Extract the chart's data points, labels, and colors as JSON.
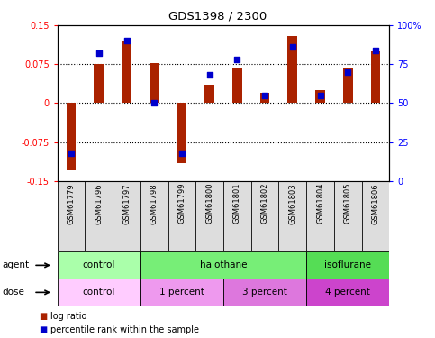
{
  "title": "GDS1398 / 2300",
  "samples": [
    "GSM61779",
    "GSM61796",
    "GSM61797",
    "GSM61798",
    "GSM61799",
    "GSM61800",
    "GSM61801",
    "GSM61802",
    "GSM61803",
    "GSM61804",
    "GSM61805",
    "GSM61806"
  ],
  "log_ratio": [
    -0.13,
    0.075,
    0.12,
    0.078,
    -0.115,
    0.035,
    0.068,
    0.02,
    0.13,
    0.025,
    0.068,
    0.1
  ],
  "percentile": [
    18,
    82,
    90,
    50,
    18,
    68,
    78,
    55,
    86,
    55,
    70,
    84
  ],
  "agent_groups": [
    {
      "label": "control",
      "start": 0,
      "end": 3,
      "color": "#aaffaa"
    },
    {
      "label": "halothane",
      "start": 3,
      "end": 9,
      "color": "#77ee77"
    },
    {
      "label": "isoflurane",
      "start": 9,
      "end": 12,
      "color": "#55dd55"
    }
  ],
  "dose_groups": [
    {
      "label": "control",
      "start": 0,
      "end": 3,
      "color": "#ffccff"
    },
    {
      "label": "1 percent",
      "start": 3,
      "end": 6,
      "color": "#ee99ee"
    },
    {
      "label": "3 percent",
      "start": 6,
      "end": 9,
      "color": "#dd77dd"
    },
    {
      "label": "4 percent",
      "start": 9,
      "end": 12,
      "color": "#cc44cc"
    }
  ],
  "ylim_left": [
    -0.15,
    0.15
  ],
  "ylim_right": [
    0,
    100
  ],
  "yticks_left": [
    -0.15,
    -0.075,
    0,
    0.075,
    0.15
  ],
  "yticks_right": [
    0,
    25,
    50,
    75,
    100
  ],
  "ytick_labels_left": [
    "-0.15",
    "-0.075",
    "0",
    "0.075",
    "0.15"
  ],
  "ytick_labels_right": [
    "0",
    "25",
    "50",
    "75",
    "100%"
  ],
  "hlines": [
    -0.075,
    0,
    0.075
  ],
  "bar_color": "#aa2200",
  "dot_color": "#0000cc",
  "bar_width": 0.35,
  "dot_size": 22
}
